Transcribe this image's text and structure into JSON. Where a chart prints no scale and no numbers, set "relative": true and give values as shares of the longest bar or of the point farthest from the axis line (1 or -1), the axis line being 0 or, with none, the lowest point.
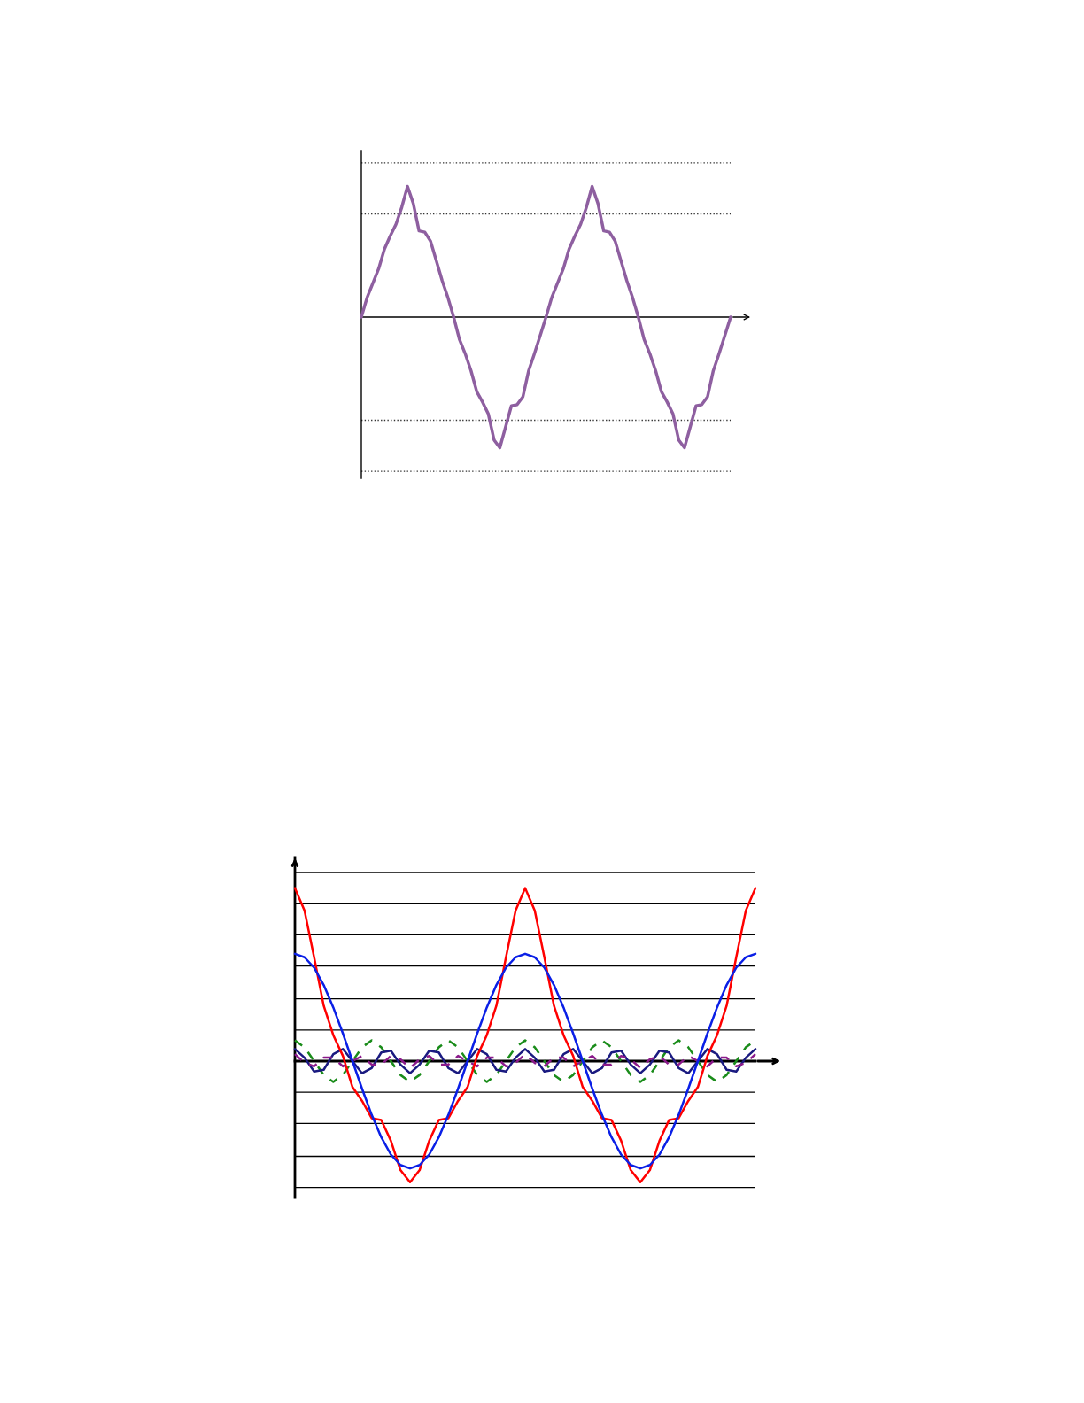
{
  "chart_data": [
    {
      "type": "line",
      "relative": true,
      "categories": [
        null,
        null,
        null,
        null,
        null,
        null,
        null,
        null,
        null,
        null,
        null,
        null,
        null,
        null,
        null,
        null,
        null,
        null,
        null,
        null,
        null,
        null,
        null,
        null,
        null,
        null,
        null,
        null,
        null,
        null,
        null,
        null,
        null,
        null,
        null,
        null,
        null,
        null,
        null,
        null,
        null,
        null,
        null,
        null,
        null,
        null,
        null,
        null,
        null,
        null,
        null,
        null,
        null,
        null,
        null,
        null,
        null,
        null,
        null,
        null,
        null,
        null,
        null,
        null,
        null
      ],
      "series": [
        {
          "color": "#8e5fa0",
          "line_style": "solid",
          "values": [
            0,
            0.15,
            0.26,
            0.37,
            0.52,
            0.62,
            0.71,
            0.84,
            1,
            0.87,
            0.66,
            0.65,
            0.58,
            0.43,
            0.28,
            0.15,
            0,
            -0.17,
            -0.28,
            -0.41,
            -0.57,
            -0.65,
            -0.74,
            -0.94,
            -1,
            -0.84,
            -0.68,
            -0.67,
            -0.61,
            -0.41,
            -0.28,
            -0.14,
            0,
            0.15,
            0.26,
            0.37,
            0.52,
            0.62,
            0.71,
            0.84,
            1,
            0.87,
            0.66,
            0.65,
            0.58,
            0.43,
            0.28,
            0.15,
            0,
            -0.17,
            -0.28,
            -0.41,
            -0.57,
            -0.65,
            -0.74,
            -0.94,
            -1,
            -0.84,
            -0.68,
            -0.67,
            -0.61,
            -0.41,
            -0.28,
            -0.14,
            0
          ]
        }
      ],
      "ref_lines": [
        {
          "axis": "y",
          "value": 1.18,
          "line_style": "dotted",
          "color": "#333333"
        },
        {
          "axis": "y",
          "value": 0.79,
          "line_style": "dotted",
          "color": "#333333"
        },
        {
          "axis": "y",
          "value": -0.79,
          "line_style": "dotted",
          "color": "#333333"
        },
        {
          "axis": "y",
          "value": -1.18,
          "line_style": "dotted",
          "color": "#333333"
        }
      ]
    },
    {
      "type": "line",
      "relative": true,
      "categories": [
        null,
        null,
        null,
        null,
        null,
        null,
        null,
        null,
        null,
        null,
        null,
        null,
        null,
        null,
        null,
        null,
        null,
        null,
        null,
        null,
        null,
        null,
        null,
        null,
        null,
        null,
        null,
        null,
        null,
        null,
        null,
        null,
        null,
        null,
        null,
        null,
        null,
        null,
        null,
        null,
        null,
        null,
        null,
        null,
        null,
        null,
        null,
        null,
        null
      ],
      "series": [
        {
          "color": "#1a8c1a",
          "line_style": "dashed",
          "values": [
            0.12,
            0.08,
            0,
            -0.08,
            -0.12,
            -0.08,
            0,
            0.08,
            0.12,
            0.08,
            0,
            -0.08,
            -0.12,
            -0.08,
            0,
            0.08,
            0.12,
            0.08,
            0,
            -0.08,
            -0.12,
            -0.08,
            0,
            0.08,
            0.12,
            0.08,
            0,
            -0.08,
            -0.12,
            -0.08,
            0,
            0.08,
            0.12,
            0.08,
            0,
            -0.08,
            -0.12,
            -0.08,
            0,
            0.08,
            0.12,
            0.08,
            0,
            -0.08,
            -0.12,
            -0.08,
            0,
            0.08,
            0.12
          ]
        },
        {
          "color": "#1a1a80",
          "line_style": "solid",
          "values": [
            0.07,
            0.02,
            -0.06,
            -0.05,
            0.04,
            0.07,
            0,
            -0.07,
            -0.04,
            0.05,
            0.06,
            -0.02,
            -0.07,
            -0.02,
            0.06,
            0.05,
            -0.04,
            -0.07,
            0,
            0.07,
            0.04,
            -0.05,
            -0.06,
            0.02,
            0.07,
            0.02,
            -0.06,
            -0.05,
            0.04,
            0.07,
            0,
            -0.07,
            -0.04,
            0.05,
            0.06,
            -0.02,
            -0.07,
            -0.02,
            0.06,
            0.05,
            -0.04,
            -0.07,
            0,
            0.07,
            0.04,
            -0.05,
            -0.06,
            0.02,
            0.07
          ]
        },
        {
          "color": "#8b1a8b",
          "line_style": "dashed",
          "values": [
            0.04,
            -0.01,
            -0.03,
            0.02,
            0.02,
            -0.03,
            0,
            0.03,
            -0.02,
            -0.02,
            0.03,
            0.01,
            -0.04,
            0.01,
            0.03,
            -0.02,
            -0.02,
            0.03,
            0,
            -0.03,
            0.02,
            0.02,
            -0.03,
            -0.01,
            0.04,
            -0.01,
            -0.03,
            0.02,
            0.02,
            -0.03,
            0,
            0.03,
            -0.02,
            -0.02,
            0.03,
            0.01,
            -0.04,
            0.01,
            0.03,
            -0.02,
            -0.02,
            0.03,
            0,
            -0.03,
            0.02,
            0.02,
            -0.03,
            -0.01,
            0.04
          ]
        },
        {
          "color": "#ff0000",
          "line_style": "solid",
          "values": [
            1,
            0.87,
            0.6,
            0.32,
            0.15,
            0.03,
            -0.15,
            -0.23,
            -0.33,
            -0.34,
            -0.46,
            -0.63,
            -0.7,
            -0.63,
            -0.46,
            -0.34,
            -0.33,
            -0.23,
            -0.15,
            0.03,
            0.15,
            0.32,
            0.6,
            0.87,
            1,
            0.87,
            0.6,
            0.32,
            0.15,
            0.03,
            -0.15,
            -0.23,
            -0.33,
            -0.34,
            -0.46,
            -0.63,
            -0.7,
            -0.63,
            -0.46,
            -0.34,
            -0.33,
            -0.23,
            -0.15,
            0.03,
            0.15,
            0.32,
            0.6,
            0.87,
            1
          ]
        },
        {
          "color": "#0a1fe6",
          "line_style": "solid",
          "values": [
            0.62,
            0.6,
            0.54,
            0.44,
            0.31,
            0.16,
            0,
            -0.16,
            -0.31,
            -0.44,
            -0.54,
            -0.6,
            -0.62,
            -0.6,
            -0.54,
            -0.44,
            -0.31,
            -0.16,
            0,
            0.16,
            0.31,
            0.44,
            0.54,
            0.6,
            0.62,
            0.6,
            0.54,
            0.44,
            0.31,
            0.16,
            0,
            -0.16,
            -0.31,
            -0.44,
            -0.54,
            -0.6,
            -0.62,
            -0.6,
            -0.54,
            -0.44,
            -0.31,
            -0.16,
            0,
            0.16,
            0.31,
            0.44,
            0.54,
            0.6,
            0.62
          ]
        }
      ],
      "ref_lines": [
        {
          "axis": "y",
          "value": 1.09,
          "line_style": "solid",
          "color": "#000000"
        },
        {
          "axis": "y",
          "value": 0.91,
          "line_style": "solid",
          "color": "#000000"
        },
        {
          "axis": "y",
          "value": 0.73,
          "line_style": "solid",
          "color": "#000000"
        },
        {
          "axis": "y",
          "value": 0.55,
          "line_style": "solid",
          "color": "#000000"
        },
        {
          "axis": "y",
          "value": 0.36,
          "line_style": "solid",
          "color": "#000000"
        },
        {
          "axis": "y",
          "value": 0.18,
          "line_style": "solid",
          "color": "#000000"
        },
        {
          "axis": "y",
          "value": -0.18,
          "line_style": "solid",
          "color": "#000000"
        },
        {
          "axis": "y",
          "value": -0.36,
          "line_style": "solid",
          "color": "#000000"
        },
        {
          "axis": "y",
          "value": -0.55,
          "line_style": "solid",
          "color": "#000000"
        },
        {
          "axis": "y",
          "value": -0.73,
          "line_style": "solid",
          "color": "#000000"
        }
      ]
    }
  ]
}
